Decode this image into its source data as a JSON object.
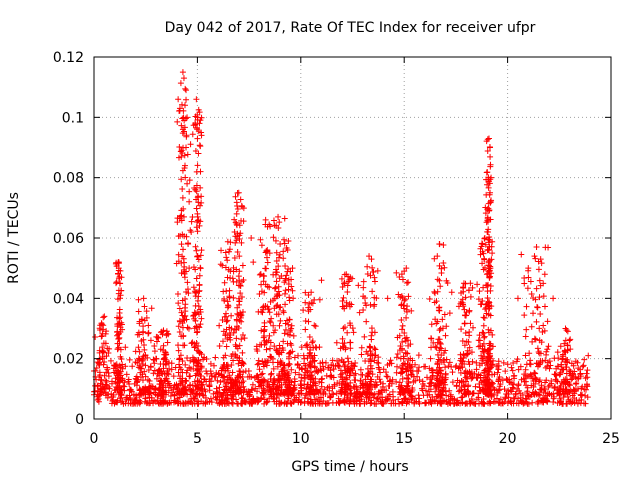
{
  "chart_data": {
    "type": "scatter",
    "title": "Day 042 of 2017, Rate Of TEC Index for receiver ufpr",
    "xlabel": "GPS time / hours",
    "ylabel": "ROTI / TECUs",
    "xlim": [
      0,
      25
    ],
    "ylim": [
      0,
      0.12
    ],
    "xticks": [
      0,
      5,
      10,
      15,
      20,
      25
    ],
    "yticks": [
      0,
      0.02,
      0.04,
      0.06,
      0.08,
      0.1,
      0.12
    ],
    "xtick_labels": [
      "0",
      "5",
      "10",
      "15",
      "20",
      "25"
    ],
    "ytick_labels": [
      "0",
      "0.02",
      "0.04",
      "0.06",
      "0.08",
      "0.1",
      "0.12"
    ],
    "grid": true,
    "marker": "+",
    "color": "#ff0000",
    "time_range_hours": [
      0.0,
      23.9
    ],
    "baseline_band": [
      0.005,
      0.02
    ],
    "bursts": [
      {
        "t": 0.4,
        "w": 0.3,
        "peak": 0.034
      },
      {
        "t": 1.2,
        "w": 0.12,
        "peak": 0.052
      },
      {
        "t": 2.4,
        "w": 0.3,
        "peak": 0.04
      },
      {
        "t": 3.3,
        "w": 0.25,
        "peak": 0.03
      },
      {
        "t": 4.3,
        "w": 0.22,
        "peak": 0.115
      },
      {
        "t": 5.0,
        "w": 0.18,
        "peak": 0.105
      },
      {
        "t": 6.5,
        "w": 0.3,
        "peak": 0.061
      },
      {
        "t": 7.0,
        "w": 0.2,
        "peak": 0.075
      },
      {
        "t": 8.3,
        "w": 0.3,
        "peak": 0.066
      },
      {
        "t": 8.9,
        "w": 0.25,
        "peak": 0.067
      },
      {
        "t": 9.4,
        "w": 0.2,
        "peak": 0.059
      },
      {
        "t": 10.5,
        "w": 0.3,
        "peak": 0.042
      },
      {
        "t": 12.2,
        "w": 0.3,
        "peak": 0.048
      },
      {
        "t": 13.3,
        "w": 0.3,
        "peak": 0.054
      },
      {
        "t": 15.0,
        "w": 0.25,
        "peak": 0.05
      },
      {
        "t": 16.7,
        "w": 0.3,
        "peak": 0.058
      },
      {
        "t": 18.0,
        "w": 0.25,
        "peak": 0.045
      },
      {
        "t": 18.9,
        "w": 0.25,
        "peak": 0.06
      },
      {
        "t": 19.1,
        "w": 0.1,
        "peak": 0.093
      },
      {
        "t": 21.4,
        "w": 0.5,
        "peak": 0.057
      },
      {
        "t": 22.8,
        "w": 0.3,
        "peak": 0.03
      }
    ],
    "peaks": [
      {
        "x": 4.3,
        "y": 0.115
      },
      {
        "x": 4.35,
        "y": 0.113
      },
      {
        "x": 4.45,
        "y": 0.109
      },
      {
        "x": 4.4,
        "y": 0.104
      },
      {
        "x": 4.5,
        "y": 0.1
      },
      {
        "x": 4.3,
        "y": 0.096
      },
      {
        "x": 4.45,
        "y": 0.09
      },
      {
        "x": 4.4,
        "y": 0.084
      },
      {
        "x": 4.5,
        "y": 0.078
      },
      {
        "x": 4.6,
        "y": 0.072
      },
      {
        "x": 4.35,
        "y": 0.067
      },
      {
        "x": 4.55,
        "y": 0.058
      },
      {
        "x": 4.7,
        "y": 0.062
      },
      {
        "x": 4.6,
        "y": 0.05
      },
      {
        "x": 4.95,
        "y": 0.106
      },
      {
        "x": 5.0,
        "y": 0.1
      },
      {
        "x": 5.1,
        "y": 0.098
      },
      {
        "x": 5.2,
        "y": 0.094
      },
      {
        "x": 5.05,
        "y": 0.088
      },
      {
        "x": 5.15,
        "y": 0.082
      },
      {
        "x": 4.9,
        "y": 0.076
      },
      {
        "x": 5.0,
        "y": 0.068
      },
      {
        "x": 5.1,
        "y": 0.064
      },
      {
        "x": 5.2,
        "y": 0.056
      },
      {
        "x": 7.0,
        "y": 0.075
      },
      {
        "x": 6.9,
        "y": 0.068
      },
      {
        "x": 6.8,
        "y": 0.062
      },
      {
        "x": 8.9,
        "y": 0.067
      },
      {
        "x": 8.3,
        "y": 0.066
      },
      {
        "x": 9.4,
        "y": 0.059
      },
      {
        "x": 19.1,
        "y": 0.093
      },
      {
        "x": 19.15,
        "y": 0.09
      },
      {
        "x": 19.2,
        "y": 0.08
      },
      {
        "x": 19.15,
        "y": 0.075
      },
      {
        "x": 19.1,
        "y": 0.069
      },
      {
        "x": 19.05,
        "y": 0.062
      },
      {
        "x": 18.9,
        "y": 0.06
      },
      {
        "x": 19.25,
        "y": 0.055
      },
      {
        "x": 19.0,
        "y": 0.048
      },
      {
        "x": 16.7,
        "y": 0.058
      },
      {
        "x": 16.6,
        "y": 0.054
      },
      {
        "x": 21.4,
        "y": 0.057
      },
      {
        "x": 21.3,
        "y": 0.054
      },
      {
        "x": 21.6,
        "y": 0.053
      },
      {
        "x": 1.2,
        "y": 0.052
      },
      {
        "x": 1.2,
        "y": 0.05
      },
      {
        "x": 1.25,
        "y": 0.045
      },
      {
        "x": 13.3,
        "y": 0.054
      },
      {
        "x": 15.1,
        "y": 0.05
      },
      {
        "x": 15.0,
        "y": 0.049
      },
      {
        "x": 12.2,
        "y": 0.048
      },
      {
        "x": 10.5,
        "y": 0.042
      },
      {
        "x": 2.4,
        "y": 0.04
      },
      {
        "x": 7.6,
        "y": 0.06
      },
      {
        "x": 7.7,
        "y": 0.052
      },
      {
        "x": 8.5,
        "y": 0.055
      },
      {
        "x": 9.0,
        "y": 0.058
      },
      {
        "x": 9.6,
        "y": 0.05
      },
      {
        "x": 11.0,
        "y": 0.046
      },
      {
        "x": 14.2,
        "y": 0.04
      },
      {
        "x": 17.3,
        "y": 0.042
      },
      {
        "x": 18.2,
        "y": 0.045
      },
      {
        "x": 20.5,
        "y": 0.04
      },
      {
        "x": 21.0,
        "y": 0.05
      },
      {
        "x": 21.8,
        "y": 0.048
      },
      {
        "x": 22.2,
        "y": 0.04
      },
      {
        "x": 22.8,
        "y": 0.03
      },
      {
        "x": 23.9,
        "y": 0.021
      },
      {
        "x": 0.5,
        "y": 0.034
      }
    ]
  }
}
